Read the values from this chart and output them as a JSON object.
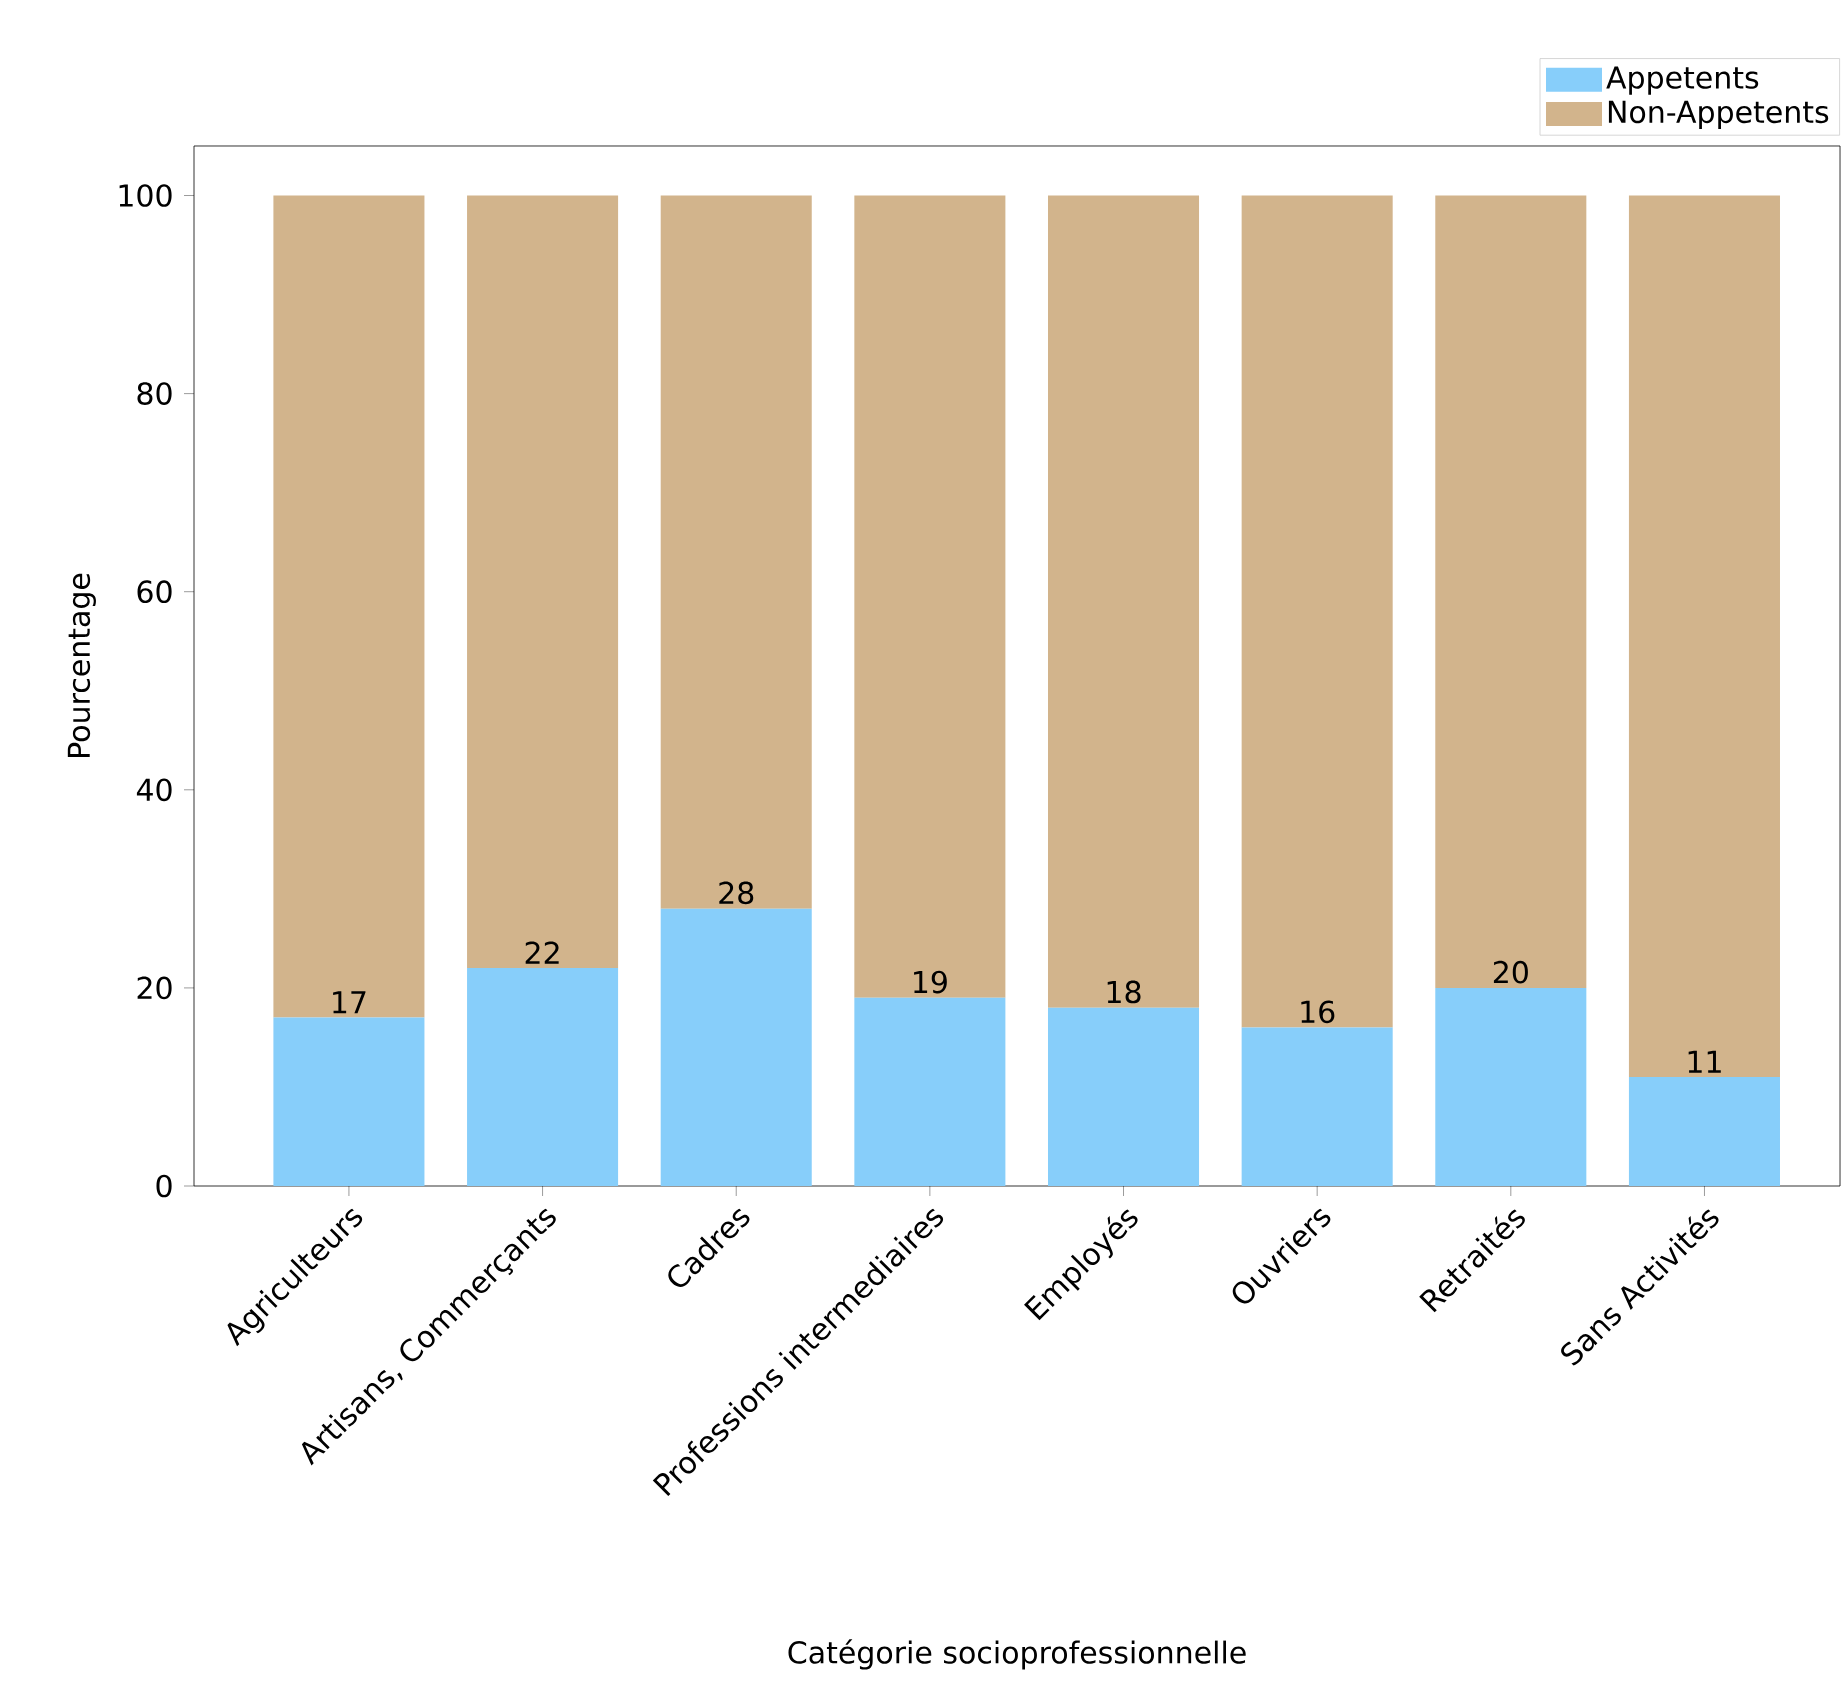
{
  "chart_data": {
    "type": "bar",
    "stacked": true,
    "xlabel": "Catégorie socioprofessionnelle",
    "ylabel": "Pourcentage",
    "categories": [
      "Agriculteurs",
      "Artisans, Commerçants",
      "Cadres",
      "Professions intermediaires",
      "Employés",
      "Ouvriers",
      "Retraités",
      "Sans Activités"
    ],
    "series": [
      {
        "name": "Appetents",
        "color": "#87cefa",
        "values": [
          17,
          22,
          28,
          19,
          18,
          16,
          20,
          11
        ],
        "value_labels": [
          "17",
          "22",
          "28",
          "19",
          "18",
          "16",
          "20",
          "11"
        ]
      },
      {
        "name": "Non-Appetents",
        "color": "#d2b48c",
        "values": [
          83,
          78,
          72,
          81,
          82,
          84,
          80,
          89
        ]
      }
    ],
    "ylim": [
      0,
      105
    ],
    "yticks": [
      0,
      20,
      40,
      60,
      80,
      100
    ],
    "legend": "top right"
  }
}
